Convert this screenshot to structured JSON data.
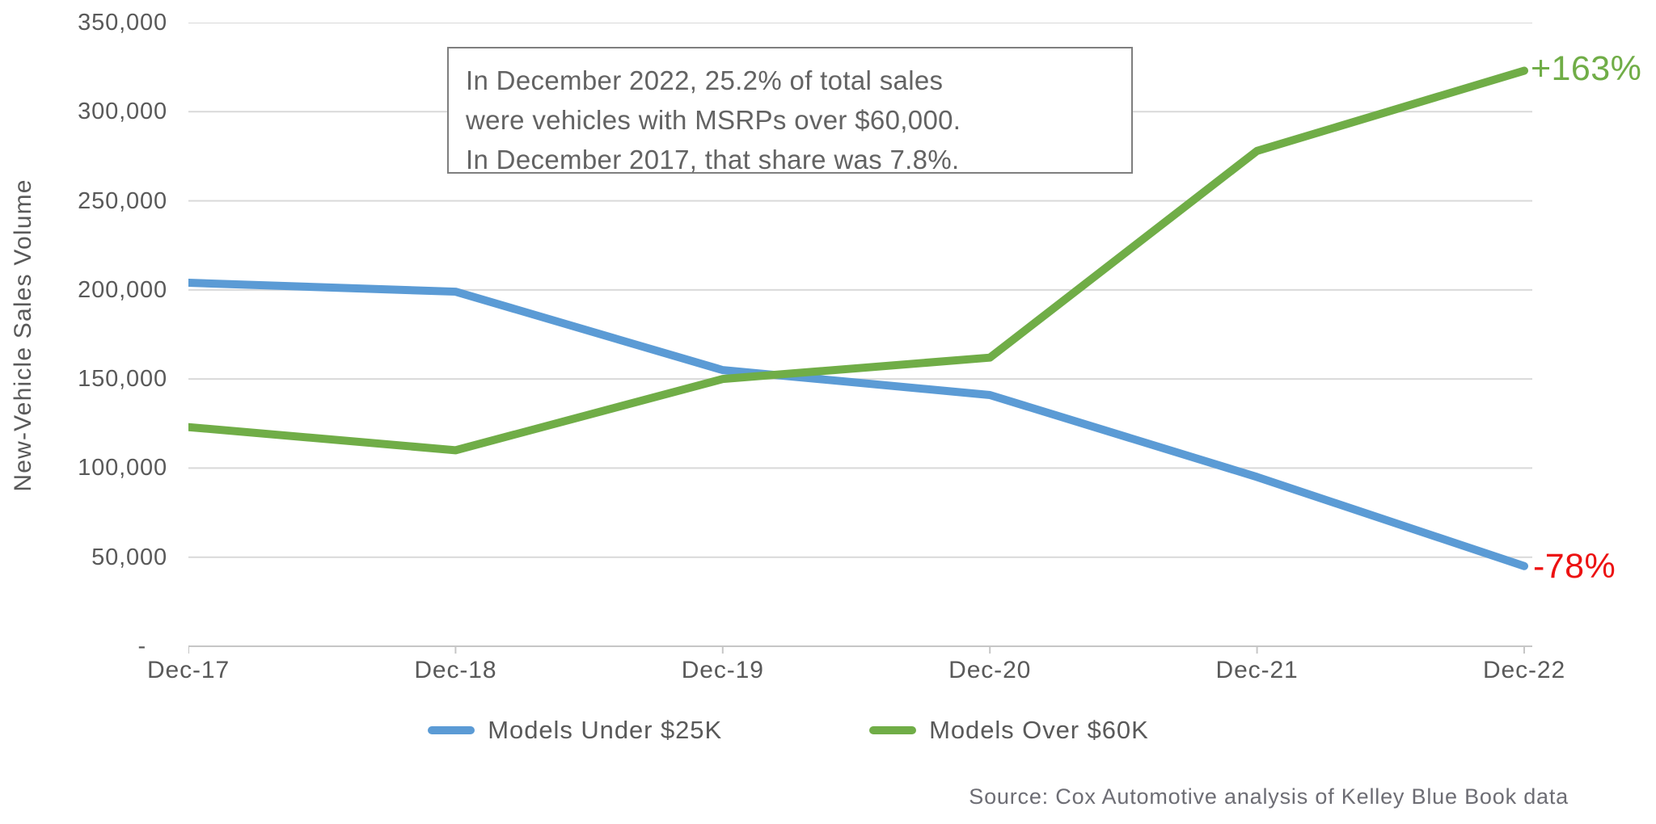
{
  "chart_data": {
    "type": "line",
    "title": "",
    "xlabel": "",
    "ylabel": "New-Vehicle Sales Volume",
    "categories": [
      "Dec-17",
      "Dec-18",
      "Dec-19",
      "Dec-20",
      "Dec-21",
      "Dec-22"
    ],
    "series": [
      {
        "name": "Models Under $25K",
        "color": "#5B9BD5",
        "values": [
          204000,
          199000,
          155000,
          141000,
          95000,
          45000
        ],
        "end_label": "-78%",
        "end_label_color": "#EC1111"
      },
      {
        "name": "Models Over $60K",
        "color": "#70AD47",
        "values": [
          123000,
          110000,
          150000,
          162000,
          278000,
          323000
        ],
        "end_label": "+163%",
        "end_label_color": "#70AD47"
      }
    ],
    "ylim": [
      0,
      350000
    ],
    "ytick_step": 50000,
    "ytick_labels": [
      "-",
      "50,000",
      "100,000",
      "150,000",
      "200,000",
      "250,000",
      "300,000",
      "350,000"
    ],
    "grid": true,
    "gridline_color": "#D9D9D9",
    "axis_line_color": "#C6C6C6",
    "legend_position": "bottom"
  },
  "annotation": {
    "lines": [
      "In December 2022, 25.2% of total sales",
      "were vehicles with MSRPs over $60,000.",
      "In December 2017, that share was 7.8%."
    ]
  },
  "source": "Source: Cox Automotive analysis of Kelley Blue Book data"
}
